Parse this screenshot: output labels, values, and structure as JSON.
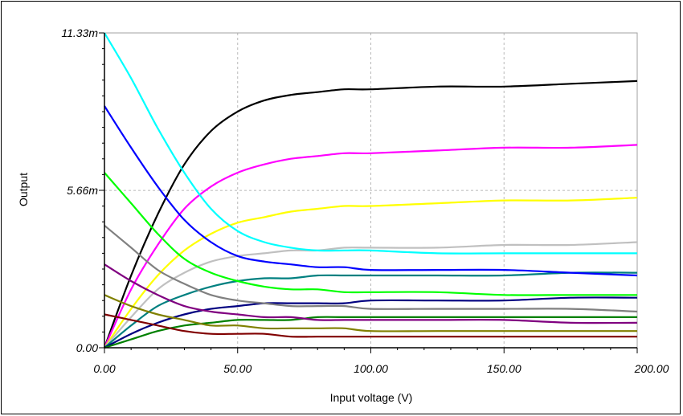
{
  "chart_data": {
    "type": "line",
    "title": "",
    "xlabel": "Input voltage (V)",
    "ylabel": "Output",
    "xlim": [
      0,
      200
    ],
    "ylim": [
      0,
      0.01133
    ],
    "x_tick_labels": [
      "0.00",
      "50.00",
      "100.00",
      "150.00",
      "200.00"
    ],
    "x_tick_values": [
      0,
      50,
      100,
      150,
      200
    ],
    "y_tick_labels": [
      "0.00",
      "5.66m",
      "11.33m"
    ],
    "y_tick_values": [
      0,
      0.00566,
      0.01133
    ],
    "grid": true,
    "x": [
      0,
      10,
      20,
      30,
      40,
      50,
      60,
      70,
      80,
      90,
      100,
      125,
      150,
      175,
      200
    ],
    "series": [
      {
        "color": "#000000",
        "values": [
          0,
          0.0026,
          0.0048,
          0.0066,
          0.0078,
          0.0085,
          0.0089,
          0.0091,
          0.0092,
          0.0093,
          0.0093,
          0.0094,
          0.0094,
          0.0095,
          0.0096
        ]
      },
      {
        "color": "#ff00ff",
        "values": [
          0,
          0.0021,
          0.0037,
          0.005,
          0.0058,
          0.0063,
          0.0066,
          0.0068,
          0.0069,
          0.007,
          0.007,
          0.0071,
          0.0072,
          0.0072,
          0.0073
        ]
      },
      {
        "color": "#ffff00",
        "values": [
          0,
          0.0014,
          0.0026,
          0.0035,
          0.0041,
          0.0045,
          0.0047,
          0.0049,
          0.005,
          0.0051,
          0.0051,
          0.0052,
          0.0053,
          0.0053,
          0.0054
        ]
      },
      {
        "color": "#c0c0c0",
        "values": [
          0,
          0.0011,
          0.0021,
          0.0027,
          0.0031,
          0.0033,
          0.0034,
          0.0035,
          0.0035,
          0.0036,
          0.0036,
          0.0036,
          0.0037,
          0.0037,
          0.0038
        ]
      },
      {
        "color": "#008080",
        "values": [
          0,
          0.0008,
          0.0015,
          0.0019,
          0.0022,
          0.0024,
          0.0025,
          0.0025,
          0.0026,
          0.0026,
          0.0026,
          0.0026,
          0.0026,
          0.0027,
          0.0027
        ]
      },
      {
        "color": "#000080",
        "values": [
          0,
          0.0005,
          0.0009,
          0.0012,
          0.0014,
          0.0015,
          0.0016,
          0.0016,
          0.0016,
          0.0016,
          0.0017,
          0.0017,
          0.0017,
          0.0018,
          0.0018
        ]
      },
      {
        "color": "#008000",
        "values": [
          0,
          0.0003,
          0.0006,
          0.0008,
          0.0009,
          0.001,
          0.001,
          0.001,
          0.0011,
          0.0011,
          0.0011,
          0.0011,
          0.0011,
          0.0011,
          0.0011
        ]
      },
      {
        "color": "#00ffff",
        "values": [
          0.01133,
          0.0097,
          0.0079,
          0.0063,
          0.005,
          0.0042,
          0.0038,
          0.0036,
          0.0035,
          0.0035,
          0.0035,
          0.0034,
          0.0034,
          0.0034,
          0.0034
        ]
      },
      {
        "color": "#0000ff",
        "values": [
          0.0087,
          0.0072,
          0.0058,
          0.0046,
          0.0038,
          0.0033,
          0.0031,
          0.003,
          0.0029,
          0.0029,
          0.0028,
          0.0028,
          0.0028,
          0.0027,
          0.0026
        ]
      },
      {
        "color": "#00ff00",
        "values": [
          0.0063,
          0.0052,
          0.0041,
          0.0032,
          0.0027,
          0.0024,
          0.0022,
          0.0021,
          0.0021,
          0.002,
          0.002,
          0.002,
          0.0019,
          0.0019,
          0.0019
        ]
      },
      {
        "color": "#808080",
        "values": [
          0.0044,
          0.0036,
          0.0028,
          0.0023,
          0.0019,
          0.0017,
          0.0016,
          0.0015,
          0.0015,
          0.0015,
          0.0014,
          0.0014,
          0.0014,
          0.0014,
          0.0013
        ]
      },
      {
        "color": "#800080",
        "values": [
          0.003,
          0.0024,
          0.0019,
          0.0015,
          0.0013,
          0.0012,
          0.0011,
          0.0011,
          0.001,
          0.001,
          0.001,
          0.001,
          0.001,
          0.0009,
          0.0009
        ]
      },
      {
        "color": "#808000",
        "values": [
          0.0019,
          0.0015,
          0.0012,
          0.001,
          0.0008,
          0.0008,
          0.0007,
          0.0007,
          0.0007,
          0.0007,
          0.0006,
          0.0006,
          0.0006,
          0.0006,
          0.0006
        ]
      },
      {
        "color": "#800000",
        "values": [
          0.0012,
          0.001,
          0.0008,
          0.0006,
          0.0005,
          0.0005,
          0.0005,
          0.0004,
          0.0004,
          0.0004,
          0.0004,
          0.0004,
          0.0004,
          0.0004,
          0.0004
        ]
      }
    ]
  }
}
